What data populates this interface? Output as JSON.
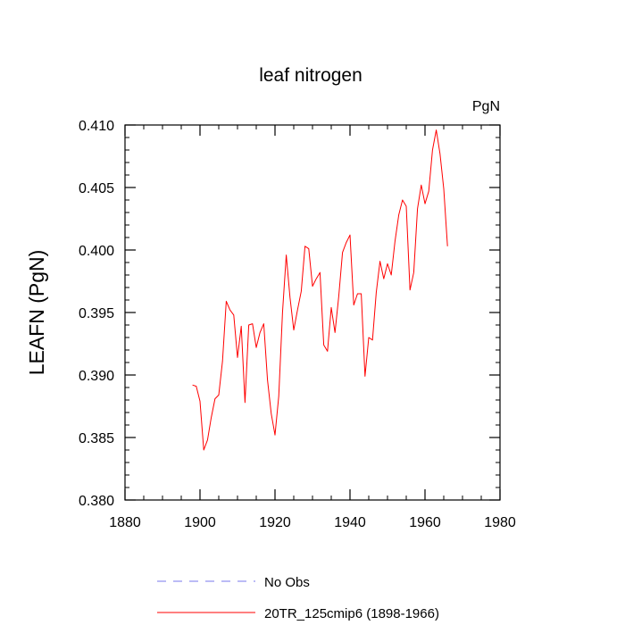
{
  "chart_data": {
    "type": "line",
    "title": "leaf nitrogen",
    "units_label": "PgN",
    "ylabel": "LEAFN  (PgN)",
    "xlabel": "",
    "xlim": [
      1880,
      1980
    ],
    "ylim": [
      0.38,
      0.41
    ],
    "x_ticks": [
      1880,
      1900,
      1920,
      1940,
      1960,
      1980
    ],
    "x_tick_labels": [
      "1880",
      "1900",
      "1920",
      "1940",
      "1960",
      "1980"
    ],
    "y_ticks": [
      0.38,
      0.385,
      0.39,
      0.395,
      0.4,
      0.405,
      0.41
    ],
    "y_tick_labels": [
      "0.380",
      "0.385",
      "0.390",
      "0.395",
      "0.400",
      "0.405",
      "0.410"
    ],
    "grid": false,
    "legend": {
      "placement": "bottom-center",
      "entries": [
        {
          "label": "No Obs",
          "color": "#7777ee",
          "style": "dashed"
        },
        {
          "label": "20TR_125cmip6 (1898-1966)",
          "color": "#ff0000",
          "style": "solid"
        }
      ]
    },
    "series": [
      {
        "name": "20TR_125cmip6 (1898-1966)",
        "color": "#ff0000",
        "x": [
          1898,
          1899,
          1900,
          1901,
          1902,
          1903,
          1904,
          1905,
          1906,
          1907,
          1908,
          1909,
          1910,
          1911,
          1912,
          1913,
          1914,
          1915,
          1916,
          1917,
          1918,
          1919,
          1920,
          1921,
          1922,
          1923,
          1924,
          1925,
          1926,
          1927,
          1928,
          1929,
          1930,
          1931,
          1932,
          1933,
          1934,
          1935,
          1936,
          1937,
          1938,
          1939,
          1940,
          1941,
          1942,
          1943,
          1944,
          1945,
          1946,
          1947,
          1948,
          1949,
          1950,
          1951,
          1952,
          1953,
          1954,
          1955,
          1956,
          1957,
          1958,
          1959,
          1960,
          1961,
          1962,
          1963,
          1964,
          1965,
          1966
        ],
        "values": [
          0.3892,
          0.3891,
          0.3879,
          0.384,
          0.3848,
          0.3866,
          0.3881,
          0.3884,
          0.3911,
          0.3959,
          0.3952,
          0.3948,
          0.3914,
          0.3939,
          0.3878,
          0.394,
          0.3941,
          0.3922,
          0.3934,
          0.3941,
          0.3896,
          0.3869,
          0.3852,
          0.3883,
          0.395,
          0.3996,
          0.3962,
          0.3936,
          0.3952,
          0.3967,
          0.4003,
          0.4001,
          0.3971,
          0.3977,
          0.3982,
          0.3924,
          0.3919,
          0.3954,
          0.3934,
          0.3963,
          0.3998,
          0.4006,
          0.4012,
          0.3956,
          0.3965,
          0.3965,
          0.3899,
          0.393,
          0.3928,
          0.3966,
          0.3991,
          0.3977,
          0.3989,
          0.398,
          0.4007,
          0.4028,
          0.404,
          0.4035,
          0.3968,
          0.3982,
          0.4033,
          0.4052,
          0.4037,
          0.4047,
          0.408,
          0.4096,
          0.4077,
          0.4049,
          0.4003
        ]
      }
    ]
  }
}
